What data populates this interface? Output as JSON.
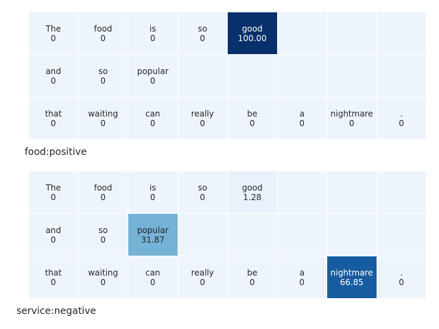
{
  "chart_data": [
    {
      "type": "heatmap",
      "caption": "food:positive",
      "colormap": "Blues",
      "vmin": 0,
      "vmax": 100,
      "rows": [
        [
          {
            "token": "The",
            "value": "0"
          },
          {
            "token": "food",
            "value": "0"
          },
          {
            "token": "is",
            "value": "0"
          },
          {
            "token": "so",
            "value": "0"
          },
          {
            "token": "good",
            "value": "100.00"
          }
        ],
        [
          {
            "token": "and",
            "value": "0"
          },
          {
            "token": "so",
            "value": "0"
          },
          {
            "token": "popular",
            "value": "0"
          }
        ],
        [
          {
            "token": "that",
            "value": "0"
          },
          {
            "token": "waiting",
            "value": "0"
          },
          {
            "token": "can",
            "value": "0"
          },
          {
            "token": "really",
            "value": "0"
          },
          {
            "token": "be",
            "value": "0"
          },
          {
            "token": "a",
            "value": "0"
          },
          {
            "token": "nightmare",
            "value": "0"
          },
          {
            "token": ".",
            "value": "0"
          }
        ]
      ]
    },
    {
      "type": "heatmap",
      "caption": "service:negative",
      "colormap": "Blues",
      "vmin": 0,
      "vmax": 100,
      "rows": [
        [
          {
            "token": "The",
            "value": "0"
          },
          {
            "token": "food",
            "value": "0"
          },
          {
            "token": "is",
            "value": "0"
          },
          {
            "token": "so",
            "value": "0"
          },
          {
            "token": "good",
            "value": "1.28"
          }
        ],
        [
          {
            "token": "and",
            "value": "0"
          },
          {
            "token": "so",
            "value": "0"
          },
          {
            "token": "popular",
            "value": "31.87"
          }
        ],
        [
          {
            "token": "that",
            "value": "0"
          },
          {
            "token": "waiting",
            "value": "0"
          },
          {
            "token": "can",
            "value": "0"
          },
          {
            "token": "really",
            "value": "0"
          },
          {
            "token": "be",
            "value": "0"
          },
          {
            "token": "a",
            "value": "0"
          },
          {
            "token": "nightmare",
            "value": "66.85"
          },
          {
            "token": ".",
            "value": "0"
          }
        ]
      ]
    }
  ]
}
